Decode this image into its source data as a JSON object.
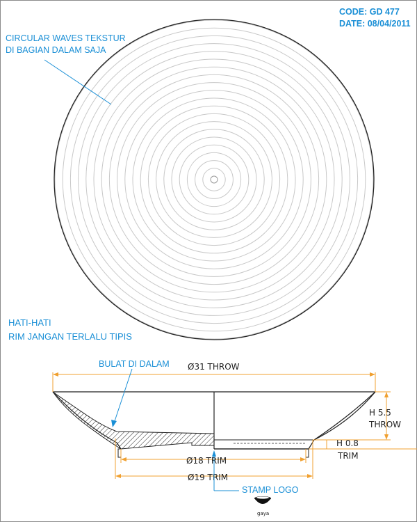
{
  "header": {
    "code": "CODE: GD 477",
    "date": "DATE: 08/04/2011"
  },
  "notes": {
    "texture_line1": "CIRCULAR WAVES TEKSTUR",
    "texture_line2": "DI BAGIAN DALAM SAJA",
    "warning_line1": "HATI-HATI",
    "warning_line2": "RIM JANGAN TERLALU TIPIS",
    "inside_round": "BULAT DI DALAM",
    "stamp_logo": "STAMP LOGO"
  },
  "dimensions": {
    "throw_diameter": "Ø31 THROW",
    "trim_diameter_18": "Ø18 TRIM",
    "trim_diameter_19": "Ø19 TRIM",
    "height_throw_value": "H 5.5",
    "height_throw_label": "THROW",
    "height_trim_value": "H 0.8",
    "height_trim_label": "TRIM"
  },
  "logo": {
    "text": "gaya"
  },
  "colors": {
    "accent": "#1a8fd6",
    "dimension": "#f0a030",
    "outline": "#222222",
    "rings": "#c8c8c8"
  }
}
